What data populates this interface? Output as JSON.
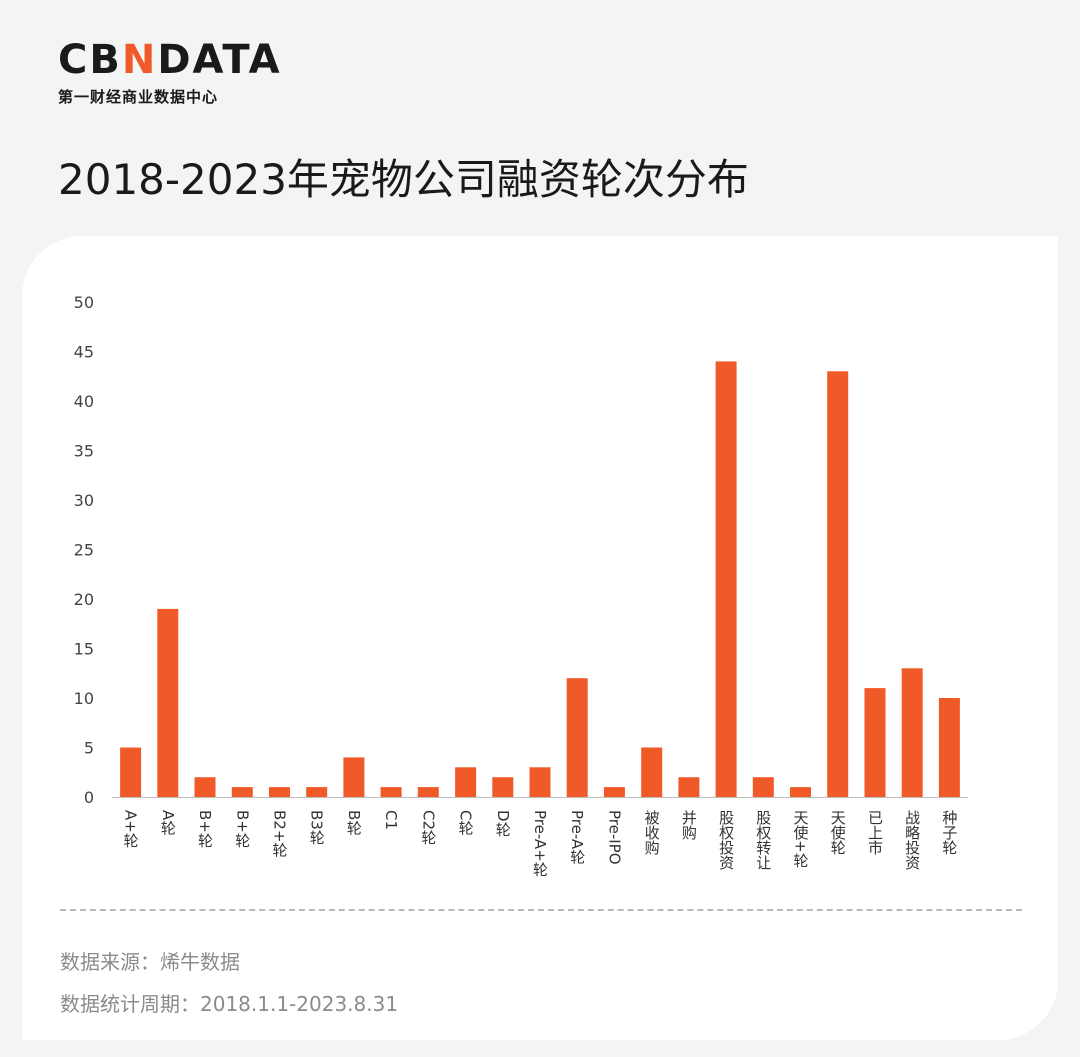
{
  "brand": {
    "logo_text_before": "CB",
    "logo_accent": "N",
    "logo_text_after": "DATA",
    "tagline": "第一财经商业数据中心",
    "accent_color": "#f05a28"
  },
  "title": "2018-2023年宠物公司融资轮次分布",
  "footer": {
    "source": "数据来源：烯牛数据",
    "period": "数据统计周期：2018.1.1-2023.8.31"
  },
  "chart_data": {
    "type": "bar",
    "title": "",
    "xlabel": "",
    "ylabel": "",
    "ylim": [
      0,
      50
    ],
    "yticks": [
      0,
      5,
      10,
      15,
      20,
      25,
      30,
      35,
      40,
      45,
      50
    ],
    "grid": false,
    "bar_color": "#f05a28",
    "categories": [
      "A+轮",
      "A轮",
      "B+轮",
      "B+轮",
      "B2+轮",
      "B3轮",
      "B轮",
      "C1",
      "C2轮",
      "C轮",
      "D轮",
      "Pre-A+轮",
      "Pre-A轮",
      "Pre-IPO",
      "被收购",
      "并购",
      "股权投资",
      "股权转让",
      "天使+轮",
      "天使轮",
      "已上市",
      "战略投资",
      "种子轮"
    ],
    "values": [
      5,
      19,
      2,
      1,
      1,
      1,
      4,
      1,
      1,
      3,
      2,
      3,
      12,
      1,
      5,
      2,
      44,
      2,
      1,
      43,
      11,
      13,
      10
    ]
  }
}
